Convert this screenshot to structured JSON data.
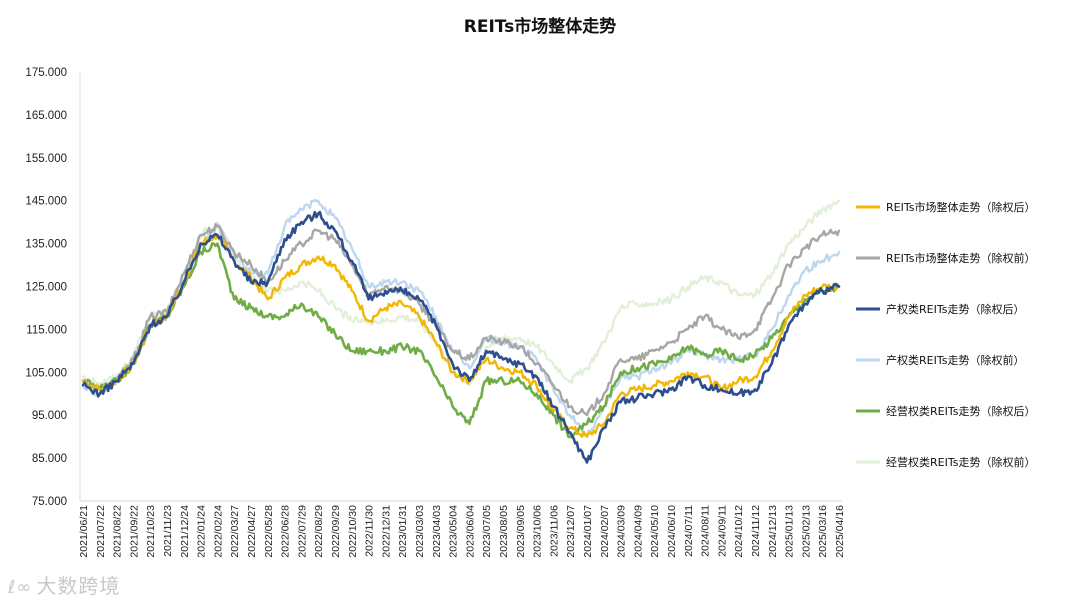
{
  "watermark": {
    "mark": "ℓ∞",
    "text": "大数跨境"
  },
  "chart_data": {
    "type": "line",
    "title": "REITs市场整体走势",
    "xlabel": "",
    "ylabel": "",
    "ylim": [
      75,
      175
    ],
    "yticks": [
      "75.000",
      "85.000",
      "95.000",
      "105.000",
      "115.000",
      "125.000",
      "135.000",
      "145.000",
      "155.000",
      "165.000",
      "175.000"
    ],
    "x": [
      "2021/06/21",
      "2021/07/22",
      "2021/08/22",
      "2021/09/22",
      "2021/10/23",
      "2021/11/23",
      "2021/12/24",
      "2022/01/24",
      "2022/02/24",
      "2022/03/27",
      "2022/04/27",
      "2022/05/28",
      "2022/06/28",
      "2022/07/29",
      "2022/08/29",
      "2022/09/29",
      "2022/10/30",
      "2022/11/30",
      "2022/12/31",
      "2023/01/31",
      "2023/03/03",
      "2023/04/03",
      "2023/05/04",
      "2023/06/04",
      "2023/07/05",
      "2023/08/05",
      "2023/09/05",
      "2023/10/06",
      "2023/11/06",
      "2023/12/07",
      "2024/01/07",
      "2024/02/07",
      "2024/03/09",
      "2024/04/09",
      "2024/05/10",
      "2024/06/10",
      "2024/07/11",
      "2024/08/11",
      "2024/09/11",
      "2024/10/12",
      "2024/11/12",
      "2024/12/13",
      "2025/01/13",
      "2025/02/13",
      "2025/03/16",
      "2025/04/16"
    ],
    "grid": false,
    "legend_position": "right",
    "series": [
      {
        "name": "REITs市场整体走势（除权后）",
        "color": "#F2B705",
        "width": 2.4,
        "values": [
          103,
          101,
          103,
          107,
          116,
          118,
          126,
          135,
          137,
          131,
          127,
          122,
          127,
          130,
          132,
          130,
          124,
          117,
          120,
          121,
          118,
          112,
          105,
          103,
          108,
          106,
          105,
          102,
          96,
          92,
          90,
          93,
          100,
          101,
          102,
          103,
          105,
          104,
          101,
          103,
          104,
          110,
          118,
          123,
          125,
          125
        ]
      },
      {
        "name": "REITs市场整体走势（除权前）",
        "color": "#A6A6A6",
        "width": 2.4,
        "values": [
          103,
          101,
          103,
          108,
          118,
          119,
          128,
          137,
          139,
          133,
          130,
          126,
          131,
          135,
          138,
          136,
          130,
          123,
          125,
          124,
          121,
          116,
          110,
          108,
          113,
          112,
          111,
          107,
          102,
          97,
          95,
          100,
          108,
          108,
          110,
          112,
          115,
          118,
          115,
          113,
          115,
          122,
          130,
          134,
          137,
          138
        ]
      },
      {
        "name": "产权类REITs走势（除权后）",
        "color": "#2E4F8F",
        "width": 2.6,
        "values": [
          102,
          100,
          103,
          107,
          116,
          118,
          126,
          135,
          137,
          131,
          126,
          126,
          136,
          140,
          142,
          138,
          131,
          122,
          124,
          124,
          122,
          116,
          107,
          103,
          110,
          108,
          107,
          104,
          97,
          91,
          84,
          92,
          98,
          99,
          100,
          101,
          104,
          102,
          101,
          100,
          101,
          107,
          116,
          121,
          124,
          125
        ]
      },
      {
        "name": "产权类REITs走势（除权前）",
        "color": "#BDD7EE",
        "width": 2.4,
        "values": [
          102,
          100,
          103,
          107,
          116,
          118,
          126,
          135,
          139,
          133,
          128,
          128,
          139,
          143,
          145,
          141,
          134,
          125,
          126,
          126,
          124,
          118,
          110,
          106,
          113,
          112,
          111,
          108,
          101,
          95,
          90,
          97,
          104,
          104,
          106,
          107,
          110,
          109,
          108,
          108,
          109,
          115,
          123,
          129,
          131,
          133
        ]
      },
      {
        "name": "经营权类REITs走势（除权后）",
        "color": "#70AD47",
        "width": 2.6,
        "values": [
          103,
          101,
          103,
          107,
          116,
          118,
          125,
          133,
          135,
          122,
          120,
          118,
          118,
          121,
          118,
          114,
          110,
          110,
          110,
          111,
          110,
          104,
          97,
          93,
          103,
          103,
          103,
          100,
          95,
          90,
          93,
          97,
          105,
          106,
          107,
          108,
          111,
          109,
          110,
          108,
          109,
          113,
          118,
          122,
          124,
          125
        ]
      },
      {
        "name": "经营权类REITs走势（除权前）",
        "color": "#E2F0D9",
        "width": 2.4,
        "values": [
          104,
          102,
          104,
          109,
          118,
          119,
          128,
          137,
          140,
          132,
          127,
          124,
          124,
          126,
          124,
          120,
          117,
          117,
          117,
          118,
          117,
          112,
          106,
          102,
          111,
          113,
          113,
          111,
          107,
          103,
          106,
          112,
          120,
          121,
          121,
          122,
          125,
          127,
          126,
          123,
          123,
          128,
          135,
          139,
          143,
          145
        ]
      }
    ]
  }
}
